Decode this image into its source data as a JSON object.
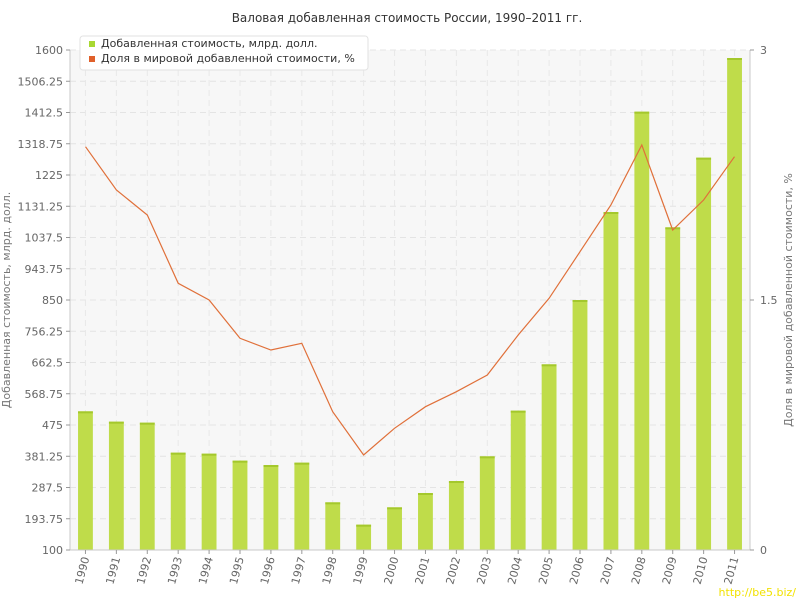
{
  "chart_data": {
    "type": "bar",
    "title": "Валовая добавленная стоимость России, 1990–2011 гг.",
    "ylabel": "Добавленная стоимость, млрд. долл.",
    "y2label": "Доля в мировой добавленной стоимости, %",
    "ylim": [
      100,
      1600
    ],
    "y2lim": [
      0,
      3
    ],
    "yticks": [
      "100",
      "193.75",
      "287.5",
      "381.25",
      "475",
      "568.75",
      "662.5",
      "756.25",
      "850",
      "943.75",
      "1037.5",
      "1131.25",
      "1225",
      "1318.75",
      "1412.5",
      "1506.25",
      "1600"
    ],
    "y2ticks": [
      "0",
      "1.5",
      "3"
    ],
    "categories": [
      "1990",
      "1991",
      "1992",
      "1993",
      "1994",
      "1995",
      "1996",
      "1997",
      "1998",
      "1999",
      "2000",
      "2001",
      "2002",
      "2003",
      "2004",
      "2005",
      "2006",
      "2007",
      "2008",
      "2009",
      "2010",
      "2011"
    ],
    "legend_position": "top-left",
    "grid": true,
    "series": [
      {
        "name": "Добавленная стоимость, млрд. долл.",
        "type": "bar",
        "axis": "left",
        "color": "#bfdc4a",
        "values": [
          516,
          485,
          482,
          392,
          389,
          368,
          355,
          362,
          243,
          176,
          228,
          271,
          307,
          381,
          518,
          657,
          850,
          1114,
          1415,
          1068,
          1277,
          1576
        ]
      },
      {
        "name": "Доля в мировой добавленной стоимости, %",
        "type": "line",
        "axis": "right",
        "color": "#e0703a",
        "values": [
          2.42,
          2.16,
          2.01,
          1.6,
          1.5,
          1.27,
          1.2,
          1.24,
          0.83,
          0.57,
          0.73,
          0.86,
          0.95,
          1.05,
          1.29,
          1.51,
          1.79,
          2.07,
          2.43,
          1.92,
          2.1,
          2.36
        ]
      }
    ]
  },
  "watermark": "http://be5.biz/"
}
